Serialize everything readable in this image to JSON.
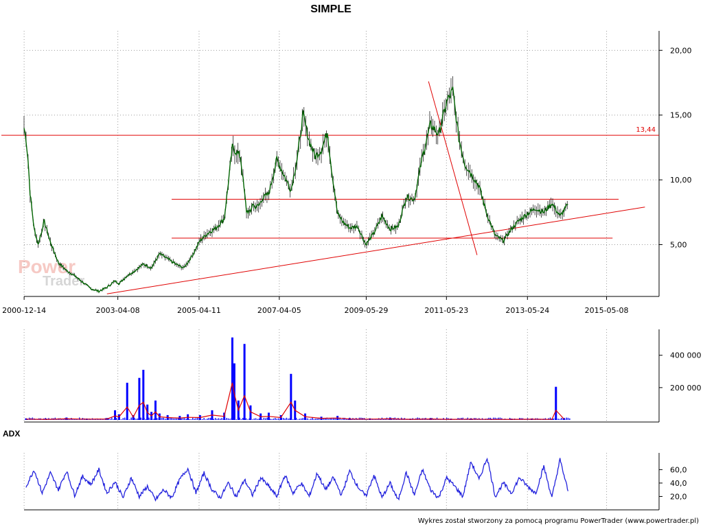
{
  "title": "SIMPLE",
  "watermark": {
    "brand_top": "Power",
    "brand_bottom": "Trader"
  },
  "footer": "Wykres został stworzony za pomocą programu PowerTrader (www.powertrader.pl)",
  "colors": {
    "price": "#006400",
    "price_body": "#1a8a1a",
    "trend": "#e00000",
    "volume": "#0000ff",
    "volume_avg": "#e00000",
    "adx": "#2222dd"
  },
  "chart_data": [
    {
      "type": "line",
      "name": "price",
      "x_ticks": [
        "2000-12-14",
        "2003-04-08",
        "2005-04-11",
        "2007-04-05",
        "2009-05-29",
        "2011-05-23",
        "2013-05-24",
        "2015-05-08"
      ],
      "y_ticks": [
        "20,00",
        "15,00",
        "10,00",
        "5,00"
      ],
      "ylim": [
        1,
        21.5
      ],
      "xlim": [
        2000.95,
        2016.65
      ],
      "level_label": "13,44",
      "level": 13.44,
      "x": [
        2000.95,
        2001.0,
        2001.05,
        2001.1,
        2001.2,
        2001.3,
        2001.45,
        2001.6,
        2001.8,
        2002.0,
        2002.2,
        2002.4,
        2002.6,
        2002.8,
        2003.0,
        2003.2,
        2003.3,
        2003.5,
        2003.7,
        2003.9,
        2004.1,
        2004.3,
        2004.5,
        2004.7,
        2004.9,
        2005.1,
        2005.3,
        2005.5,
        2005.7,
        2005.9,
        2006.1,
        2006.3,
        2006.45,
        2006.55,
        2006.6,
        2006.65,
        2006.75,
        2006.85,
        2007.0,
        2007.2,
        2007.4,
        2007.55,
        2007.7,
        2007.85,
        2008.0,
        2008.15,
        2008.3,
        2008.45,
        2008.55,
        2008.7,
        2008.85,
        2009.0,
        2009.2,
        2009.4,
        2009.6,
        2009.8,
        2010.0,
        2010.2,
        2010.4,
        2010.6,
        2010.8,
        2011.0,
        2011.2,
        2011.4,
        2011.55,
        2011.7,
        2011.85,
        2012.0,
        2012.2,
        2012.4,
        2012.6,
        2012.8,
        2013.0,
        2013.2,
        2013.4,
        2013.6,
        2013.8,
        2014.0,
        2014.2,
        2014.4
      ],
      "y": [
        14.0,
        13.2,
        11.5,
        9.0,
        6.2,
        5.0,
        6.8,
        5.2,
        3.6,
        3.0,
        2.6,
        2.1,
        1.6,
        1.4,
        1.7,
        2.2,
        2.0,
        2.6,
        3.0,
        3.5,
        3.2,
        4.3,
        3.9,
        3.5,
        3.2,
        4.1,
        5.3,
        5.9,
        6.3,
        7.0,
        12.5,
        11.8,
        7.6,
        7.5,
        8.2,
        7.9,
        8.0,
        8.6,
        8.9,
        11.6,
        10.2,
        9.2,
        11.6,
        15.0,
        13.0,
        11.8,
        12.3,
        13.7,
        10.9,
        7.4,
        6.7,
        6.3,
        6.4,
        5.0,
        5.9,
        7.2,
        6.2,
        6.4,
        8.7,
        8.5,
        11.8,
        14.3,
        13.5,
        16.0,
        16.9,
        13.2,
        11.2,
        10.5,
        9.5,
        7.3,
        5.7,
        5.3,
        6.2,
        6.9,
        7.4,
        7.8,
        7.5,
        8.2,
        7.2,
        8.1
      ],
      "trendlines": [
        {
          "from": [
            2003.0,
            1.2
          ],
          "to": [
            2016.3,
            7.9
          ]
        },
        {
          "from": [
            2004.6,
            8.5
          ],
          "to": [
            2015.65,
            8.5
          ]
        },
        {
          "from": [
            2004.6,
            5.5
          ],
          "to": [
            2015.5,
            5.5
          ]
        },
        {
          "from": [
            2010.95,
            17.6
          ],
          "to": [
            2012.15,
            4.2
          ]
        }
      ]
    },
    {
      "type": "bar",
      "name": "volume",
      "y_ticks": [
        "400 000",
        "200 000"
      ],
      "ylim": [
        0,
        560000
      ],
      "x": [
        2001.0,
        2001.5,
        2002.0,
        2002.5,
        2003.0,
        2003.2,
        2003.3,
        2003.5,
        2003.65,
        2003.8,
        2003.9,
        2004.0,
        2004.1,
        2004.2,
        2004.3,
        2004.5,
        2004.8,
        2005.0,
        2005.3,
        2005.6,
        2005.9,
        2006.1,
        2006.15,
        2006.25,
        2006.4,
        2006.55,
        2006.8,
        2007.0,
        2007.3,
        2007.55,
        2007.65,
        2007.9,
        2008.3,
        2008.7,
        2009.0,
        2009.5,
        2010.0,
        2010.5,
        2011.0,
        2011.5,
        2012.0,
        2012.5,
        2013.0,
        2013.5,
        2014.0,
        2014.1,
        2014.3
      ],
      "values": [
        10000,
        8000,
        15000,
        9000,
        12000,
        60000,
        35000,
        230000,
        30000,
        260000,
        310000,
        95000,
        50000,
        120000,
        40000,
        30000,
        25000,
        35000,
        30000,
        60000,
        45000,
        510000,
        350000,
        120000,
        470000,
        90000,
        40000,
        45000,
        30000,
        285000,
        120000,
        40000,
        20000,
        25000,
        12000,
        10000,
        15000,
        8000,
        12000,
        8000,
        10000,
        7000,
        8000,
        9000,
        7000,
        205000,
        12000
      ],
      "avg": [
        5000,
        4000,
        7000,
        5000,
        6000,
        25000,
        20000,
        80000,
        18000,
        90000,
        110000,
        45000,
        25000,
        50000,
        20000,
        15000,
        12000,
        16000,
        15000,
        30000,
        22000,
        230000,
        160000,
        60000,
        150000,
        50000,
        20000,
        22000,
        15000,
        110000,
        60000,
        20000,
        10000,
        12000,
        6000,
        5000,
        7000,
        4000,
        6000,
        4000,
        5000,
        3500,
        4000,
        4500,
        3500,
        60000,
        6000
      ]
    },
    {
      "type": "line",
      "name": "ADX",
      "label": "ADX",
      "y_ticks": [
        "60,0",
        "40,0",
        "20,0"
      ],
      "ylim": [
        0,
        85
      ],
      "x": [
        2001.0,
        2001.2,
        2001.4,
        2001.6,
        2001.8,
        2002.0,
        2002.2,
        2002.4,
        2002.6,
        2002.8,
        2003.0,
        2003.2,
        2003.4,
        2003.6,
        2003.8,
        2004.0,
        2004.2,
        2004.4,
        2004.6,
        2004.8,
        2005.0,
        2005.2,
        2005.4,
        2005.6,
        2005.8,
        2006.0,
        2006.2,
        2006.4,
        2006.6,
        2006.8,
        2007.0,
        2007.2,
        2007.4,
        2007.6,
        2007.8,
        2008.0,
        2008.2,
        2008.4,
        2008.6,
        2008.8,
        2009.0,
        2009.2,
        2009.4,
        2009.6,
        2009.8,
        2010.0,
        2010.2,
        2010.4,
        2010.6,
        2010.8,
        2011.0,
        2011.2,
        2011.4,
        2011.6,
        2011.8,
        2012.0,
        2012.2,
        2012.4,
        2012.6,
        2012.8,
        2013.0,
        2013.2,
        2013.4,
        2013.6,
        2013.8,
        2014.0,
        2014.2,
        2014.4
      ],
      "values": [
        35,
        60,
        25,
        55,
        30,
        58,
        22,
        50,
        38,
        60,
        25,
        42,
        18,
        48,
        20,
        35,
        15,
        30,
        18,
        45,
        62,
        25,
        55,
        30,
        18,
        40,
        20,
        45,
        22,
        48,
        35,
        20,
        52,
        25,
        40,
        20,
        55,
        30,
        48,
        22,
        58,
        35,
        20,
        52,
        18,
        40,
        14,
        56,
        22,
        60,
        30,
        18,
        48,
        35,
        20,
        72,
        45,
        78,
        20,
        40,
        25,
        48,
        35,
        25,
        65,
        18,
        75,
        28
      ]
    }
  ]
}
